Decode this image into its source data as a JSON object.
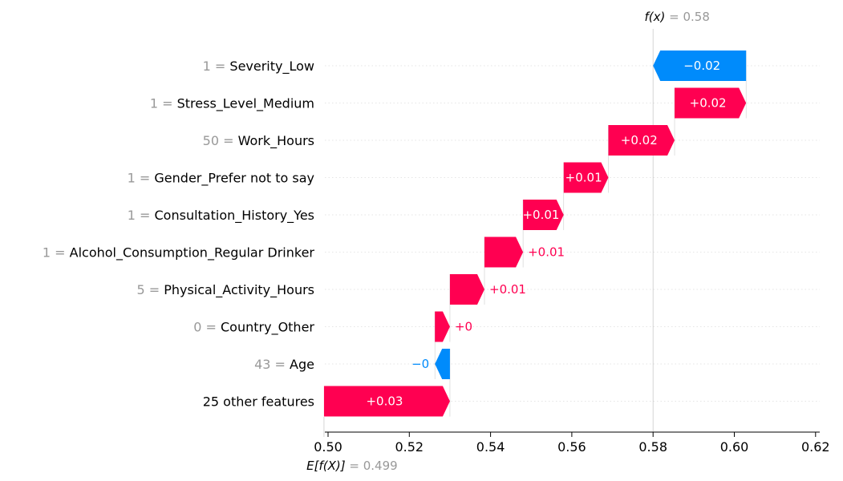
{
  "chart_data": {
    "type": "waterfall",
    "base_value": 0.499,
    "base_value_label": "0.499",
    "base_label": "E[f(X)]",
    "output_value": 0.58,
    "output_value_label": "0.58",
    "output_label": "f(x)",
    "xlim": [
      0.4995,
      0.62
    ],
    "x_ticks": [
      0.5,
      0.52,
      0.54,
      0.56,
      0.58,
      0.6,
      0.62
    ],
    "x_tick_labels": [
      "0.50",
      "0.52",
      "0.54",
      "0.56",
      "0.58",
      "0.60",
      "0.62"
    ],
    "colors": {
      "positive": "#ff0051",
      "negative": "#008bfb",
      "muted": "#999999",
      "grid": "#cccccc"
    },
    "features": [
      {
        "value": "1",
        "name": "Severity_Low",
        "start": 0.6029,
        "end": 0.58,
        "label": "−0.02"
      },
      {
        "value": "1",
        "name": "Stress_Level_Medium",
        "start": 0.5853,
        "end": 0.6029,
        "label": "+0.02"
      },
      {
        "value": "50",
        "name": "Work_Hours",
        "start": 0.569,
        "end": 0.5853,
        "label": "+0.02"
      },
      {
        "value": "1",
        "name": "Gender_Prefer not to say",
        "start": 0.558,
        "end": 0.569,
        "label": "+0.01"
      },
      {
        "value": "1",
        "name": "Consultation_History_Yes",
        "start": 0.548,
        "end": 0.558,
        "label": "+0.01"
      },
      {
        "value": "1",
        "name": "Alcohol_Consumption_Regular Drinker",
        "start": 0.5385,
        "end": 0.548,
        "label": "+0.01"
      },
      {
        "value": "5",
        "name": "Physical_Activity_Hours",
        "start": 0.53,
        "end": 0.5385,
        "label": "+0.01"
      },
      {
        "value": "0",
        "name": "Country_Other",
        "start": 0.5263,
        "end": 0.53,
        "label": "+0"
      },
      {
        "value": "43",
        "name": "Age",
        "start": 0.53,
        "end": 0.5263,
        "label": "−0"
      },
      {
        "value": "",
        "name": "25 other features",
        "start": 0.499,
        "end": 0.53,
        "label": "+0.03"
      }
    ]
  }
}
